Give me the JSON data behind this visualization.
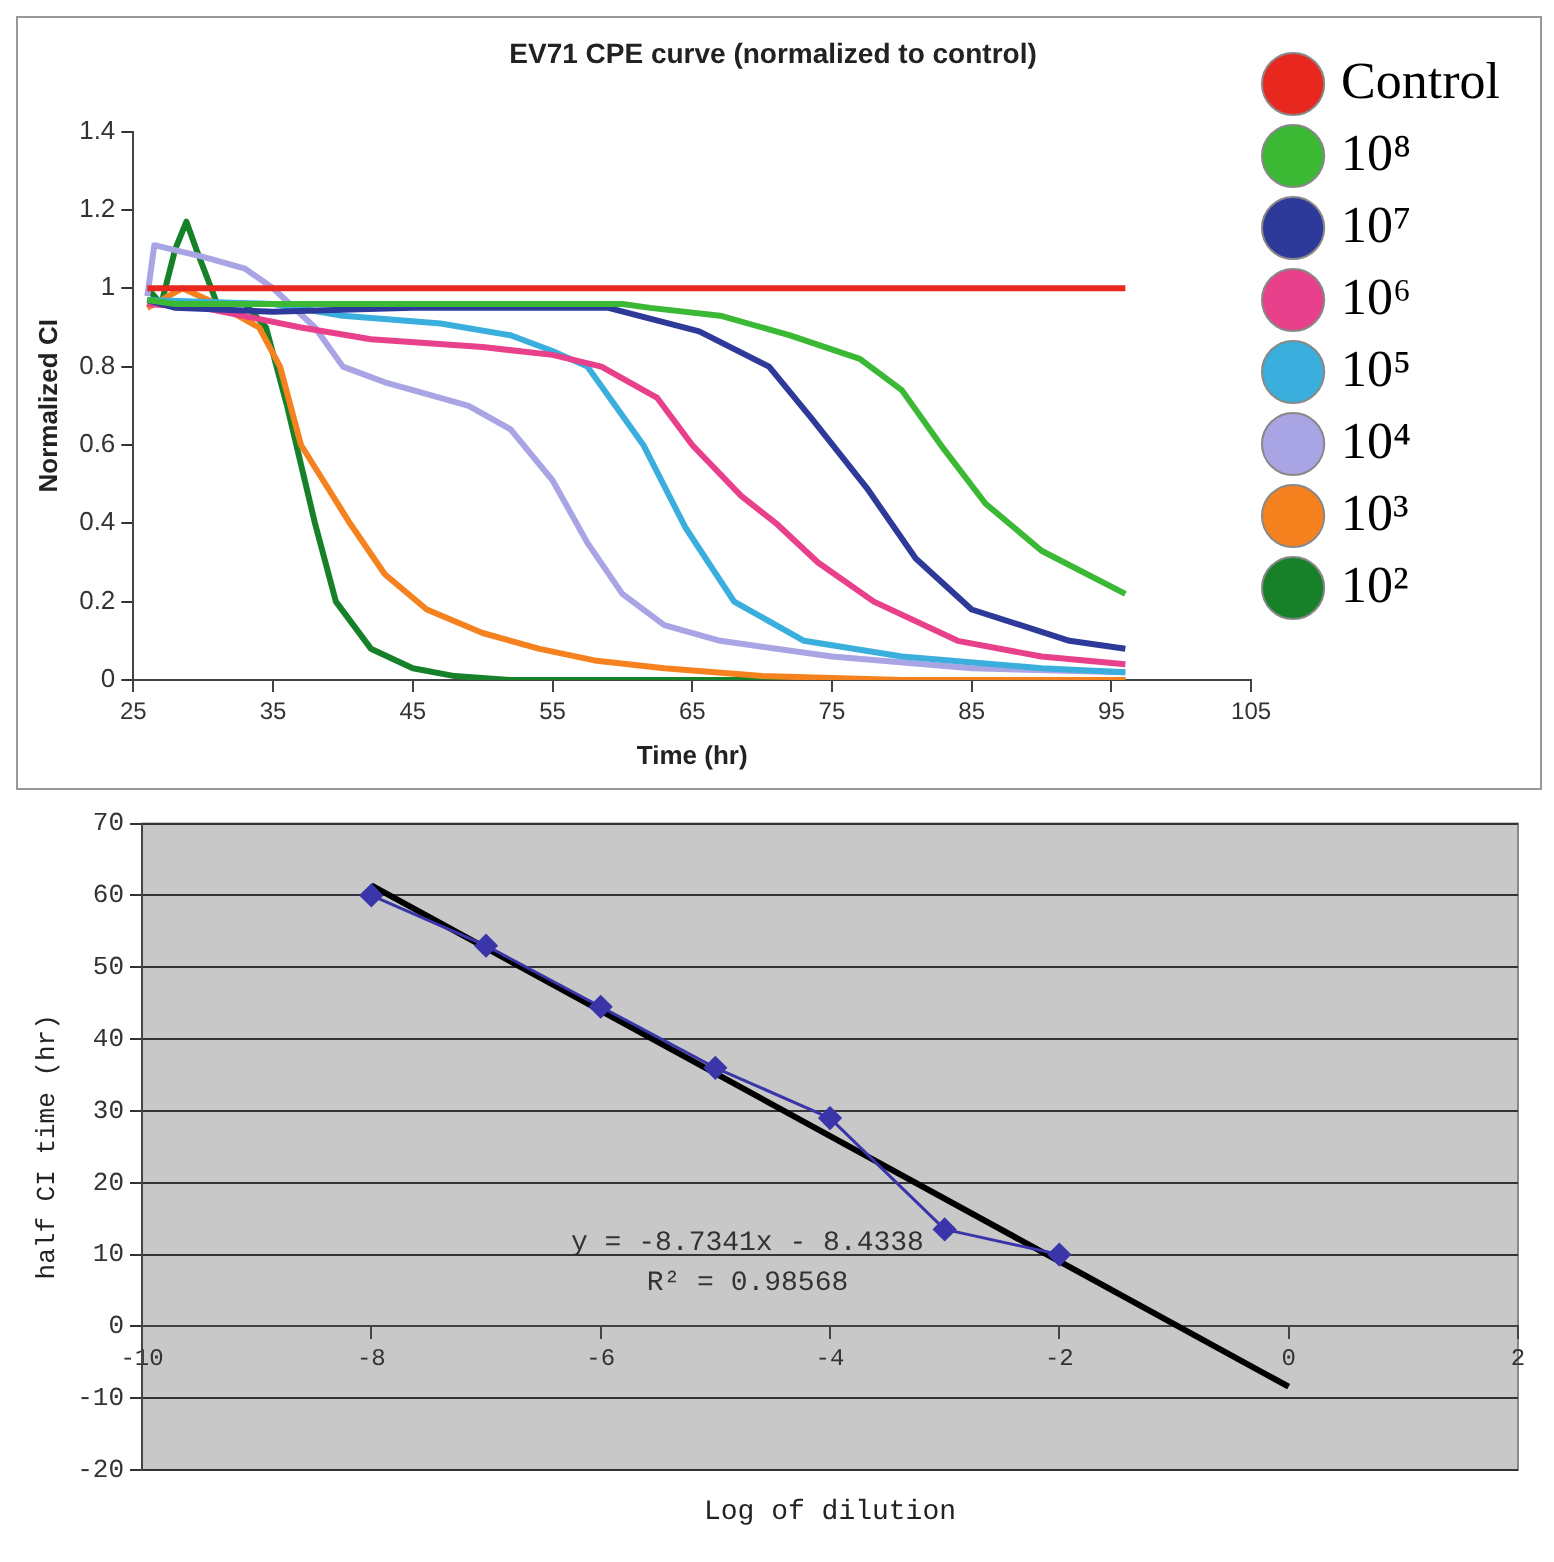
{
  "chart_data": [
    {
      "type": "line",
      "title": "EV71 CPE curve (normalized to control)",
      "xlabel": "Time (hr)",
      "ylabel": "Normalized CI",
      "xlim": [
        25,
        105
      ],
      "xticks": [
        25,
        35,
        45,
        55,
        65,
        75,
        85,
        95,
        105
      ],
      "ylim": [
        0,
        1.4
      ],
      "yticks": [
        0,
        0.2,
        0.4,
        0.6,
        0.8,
        1,
        1.2,
        1.4
      ],
      "grid": false,
      "legend": "right",
      "marker": "none",
      "series": [
        {
          "name": "Control",
          "color": "#e8281e",
          "x": [
            26,
            96
          ],
          "values": [
            1,
            1
          ]
        },
        {
          "name": "10⁸",
          "color": "#3cb934",
          "x": [
            26,
            28,
            35,
            45,
            60,
            62,
            67,
            72,
            77,
            80,
            83,
            86,
            90,
            96
          ],
          "values": [
            0.97,
            0.96,
            0.96,
            0.96,
            0.96,
            0.95,
            0.93,
            0.88,
            0.82,
            0.74,
            0.59,
            0.45,
            0.33,
            0.22
          ]
        },
        {
          "name": "10⁷",
          "color": "#2e3a9a",
          "x": [
            26,
            28,
            35,
            45,
            59,
            65.5,
            70.5,
            73.5,
            77.5,
            81,
            85,
            92,
            96
          ],
          "values": [
            0.97,
            0.95,
            0.94,
            0.95,
            0.95,
            0.89,
            0.8,
            0.67,
            0.49,
            0.31,
            0.18,
            0.1,
            0.08
          ]
        },
        {
          "name": "10⁶",
          "color": "#e8408a",
          "x": [
            26,
            30,
            37,
            42,
            50,
            55,
            58.5,
            62.5,
            65,
            68.5,
            71,
            74,
            78,
            84,
            90,
            96
          ],
          "values": [
            0.96,
            0.95,
            0.9,
            0.87,
            0.85,
            0.83,
            0.8,
            0.72,
            0.6,
            0.47,
            0.4,
            0.3,
            0.2,
            0.1,
            0.06,
            0.04
          ]
        },
        {
          "name": "10⁵",
          "color": "#3aaedc",
          "x": [
            26,
            35,
            40,
            47,
            52,
            55,
            57.5,
            59.5,
            61.5,
            64.5,
            68,
            73,
            80,
            90,
            96
          ],
          "values": [
            0.97,
            0.96,
            0.93,
            0.91,
            0.88,
            0.84,
            0.8,
            0.7,
            0.6,
            0.39,
            0.2,
            0.1,
            0.06,
            0.03,
            0.02
          ]
        },
        {
          "name": "10⁴",
          "color": "#a9a4e4",
          "x": [
            26,
            26.5,
            30,
            33,
            35,
            38,
            40,
            43,
            45,
            49,
            52,
            55,
            57.5,
            60,
            63,
            67,
            75,
            85,
            96
          ],
          "values": [
            0.98,
            1.11,
            1.08,
            1.05,
            1,
            0.9,
            0.8,
            0.76,
            0.74,
            0.7,
            0.64,
            0.51,
            0.35,
            0.22,
            0.14,
            0.1,
            0.06,
            0.03,
            0.02
          ]
        },
        {
          "name": "10³",
          "color": "#f5821f",
          "x": [
            26,
            28.5,
            31,
            34,
            35.5,
            37,
            40.5,
            43,
            46,
            50,
            54,
            58,
            63,
            70,
            80,
            96
          ],
          "values": [
            0.95,
            1,
            0.96,
            0.9,
            0.8,
            0.6,
            0.4,
            0.27,
            0.18,
            0.12,
            0.08,
            0.05,
            0.03,
            0.01,
            0,
            0
          ]
        },
        {
          "name": "10²",
          "color": "#17812a",
          "x": [
            26,
            27,
            28,
            28.8,
            29.5,
            31,
            33,
            34.5,
            36,
            38,
            39.5,
            42,
            45,
            48,
            52,
            96
          ],
          "values": [
            1,
            0.96,
            1.1,
            1.17,
            1.1,
            0.96,
            0.96,
            0.9,
            0.7,
            0.4,
            0.2,
            0.08,
            0.03,
            0.01,
            0,
            0
          ]
        }
      ]
    },
    {
      "type": "line",
      "xlabel": "Log of dilution",
      "ylabel": "half CI time (hr)",
      "xlim": [
        -10,
        2
      ],
      "xticks": [
        -10,
        -8,
        -6,
        -4,
        -2,
        0,
        2
      ],
      "ylim": [
        -20,
        70
      ],
      "yticks": [
        -20,
        -10,
        0,
        10,
        20,
        30,
        40,
        50,
        60,
        70
      ],
      "grid": "y",
      "legend": false,
      "annotations": [
        "y = -8.7341x - 8.4338",
        "R² = 0.98568"
      ],
      "series": [
        {
          "color": "#3a35a8",
          "marker": "diamond",
          "x": [
            -8,
            -7,
            -6,
            -5,
            -4,
            -3,
            -2
          ],
          "values": [
            60,
            53,
            44.5,
            36,
            29,
            13.5,
            10
          ]
        },
        {
          "color": "#000000",
          "marker": "none",
          "x": [
            -8,
            0
          ],
          "values": [
            61.4,
            -8.4
          ]
        }
      ]
    }
  ]
}
